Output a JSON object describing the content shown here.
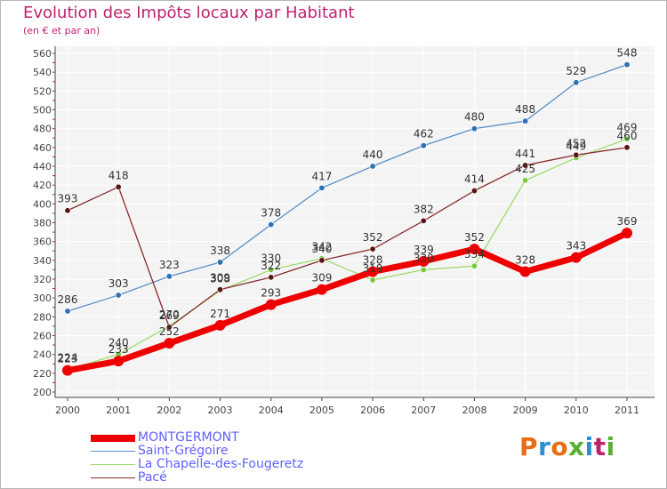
{
  "header": {
    "title": "Evolution des Impôts locaux par Habitant",
    "subtitle": "(en € et par an)"
  },
  "logo": {
    "text": "Proxiti",
    "colors": [
      "#e86d14",
      "#2d8fd2",
      "#e86d14",
      "#58b030",
      "#2d8fd2",
      "#c0206e",
      "#58b030"
    ]
  },
  "chart_data": {
    "type": "line",
    "title": "Evolution des Impôts locaux par Habitant",
    "subtitle": "(en € et par an)",
    "xlabel": "",
    "ylabel": "",
    "categories": [
      "2000",
      "2001",
      "2002",
      "2003",
      "2004",
      "2005",
      "2006",
      "2007",
      "2008",
      "2009",
      "2010",
      "2011"
    ],
    "yticks": [
      200,
      220,
      240,
      260,
      280,
      300,
      320,
      340,
      360,
      380,
      400,
      420,
      440,
      460,
      480,
      500,
      520,
      540,
      560
    ],
    "ylim": [
      200,
      560
    ],
    "grid": true,
    "legend_position": "bottom-left",
    "series": [
      {
        "name": "Saint-Grégoire",
        "color": "#5a8fc8",
        "dot": "#2f6fb4",
        "values": [
          286,
          303,
          323,
          338,
          378,
          417,
          440,
          462,
          480,
          488,
          529,
          548
        ],
        "labels": [
          "286",
          "303",
          "323",
          "338",
          "378",
          "417",
          "440",
          "462",
          "480",
          "488",
          "529",
          "548"
        ]
      },
      {
        "name": "La Chapelle-des-Fougeretz",
        "color": "#9edc6c",
        "dot": "#78c83c",
        "values": [
          224,
          240,
          270,
          308,
          330,
          342,
          319,
          330,
          334,
          425,
          449,
          469
        ],
        "labels": [
          "224",
          "240",
          "270",
          "308",
          "330",
          "342",
          "319",
          "330",
          "334",
          "425",
          "449",
          "469"
        ]
      },
      {
        "name": "Pacé",
        "color": "#8a2c2c",
        "dot": "#5a1414",
        "values": [
          393,
          418,
          269,
          309,
          322,
          340,
          352,
          382,
          414,
          441,
          452,
          460
        ],
        "labels": [
          "393",
          "418",
          "269",
          "309",
          "322",
          "340",
          "352",
          "382",
          "414",
          "441",
          "452",
          "460"
        ]
      },
      {
        "name": "MONTGERMONT",
        "color": "#ee0000",
        "dot": "#ee0000",
        "values": [
          223,
          233,
          252,
          271,
          293,
          309,
          328,
          339,
          352,
          328,
          343,
          369
        ],
        "labels": [
          "223",
          "233",
          "252",
          "271",
          "293",
          "309",
          "328",
          "339",
          "352",
          "328",
          "343",
          "369"
        ]
      }
    ]
  },
  "legend": {
    "items": [
      {
        "label": "MONTGERMONT",
        "color": "#ee0000",
        "thickness": 8
      },
      {
        "label": "Saint-Grégoire",
        "color": "#5a8fc8",
        "thickness": 1
      },
      {
        "label": "La Chapelle-des-Fougeretz",
        "color": "#9edc6c",
        "thickness": 1
      },
      {
        "label": "Pacé",
        "color": "#8a2c2c",
        "thickness": 1
      }
    ]
  }
}
